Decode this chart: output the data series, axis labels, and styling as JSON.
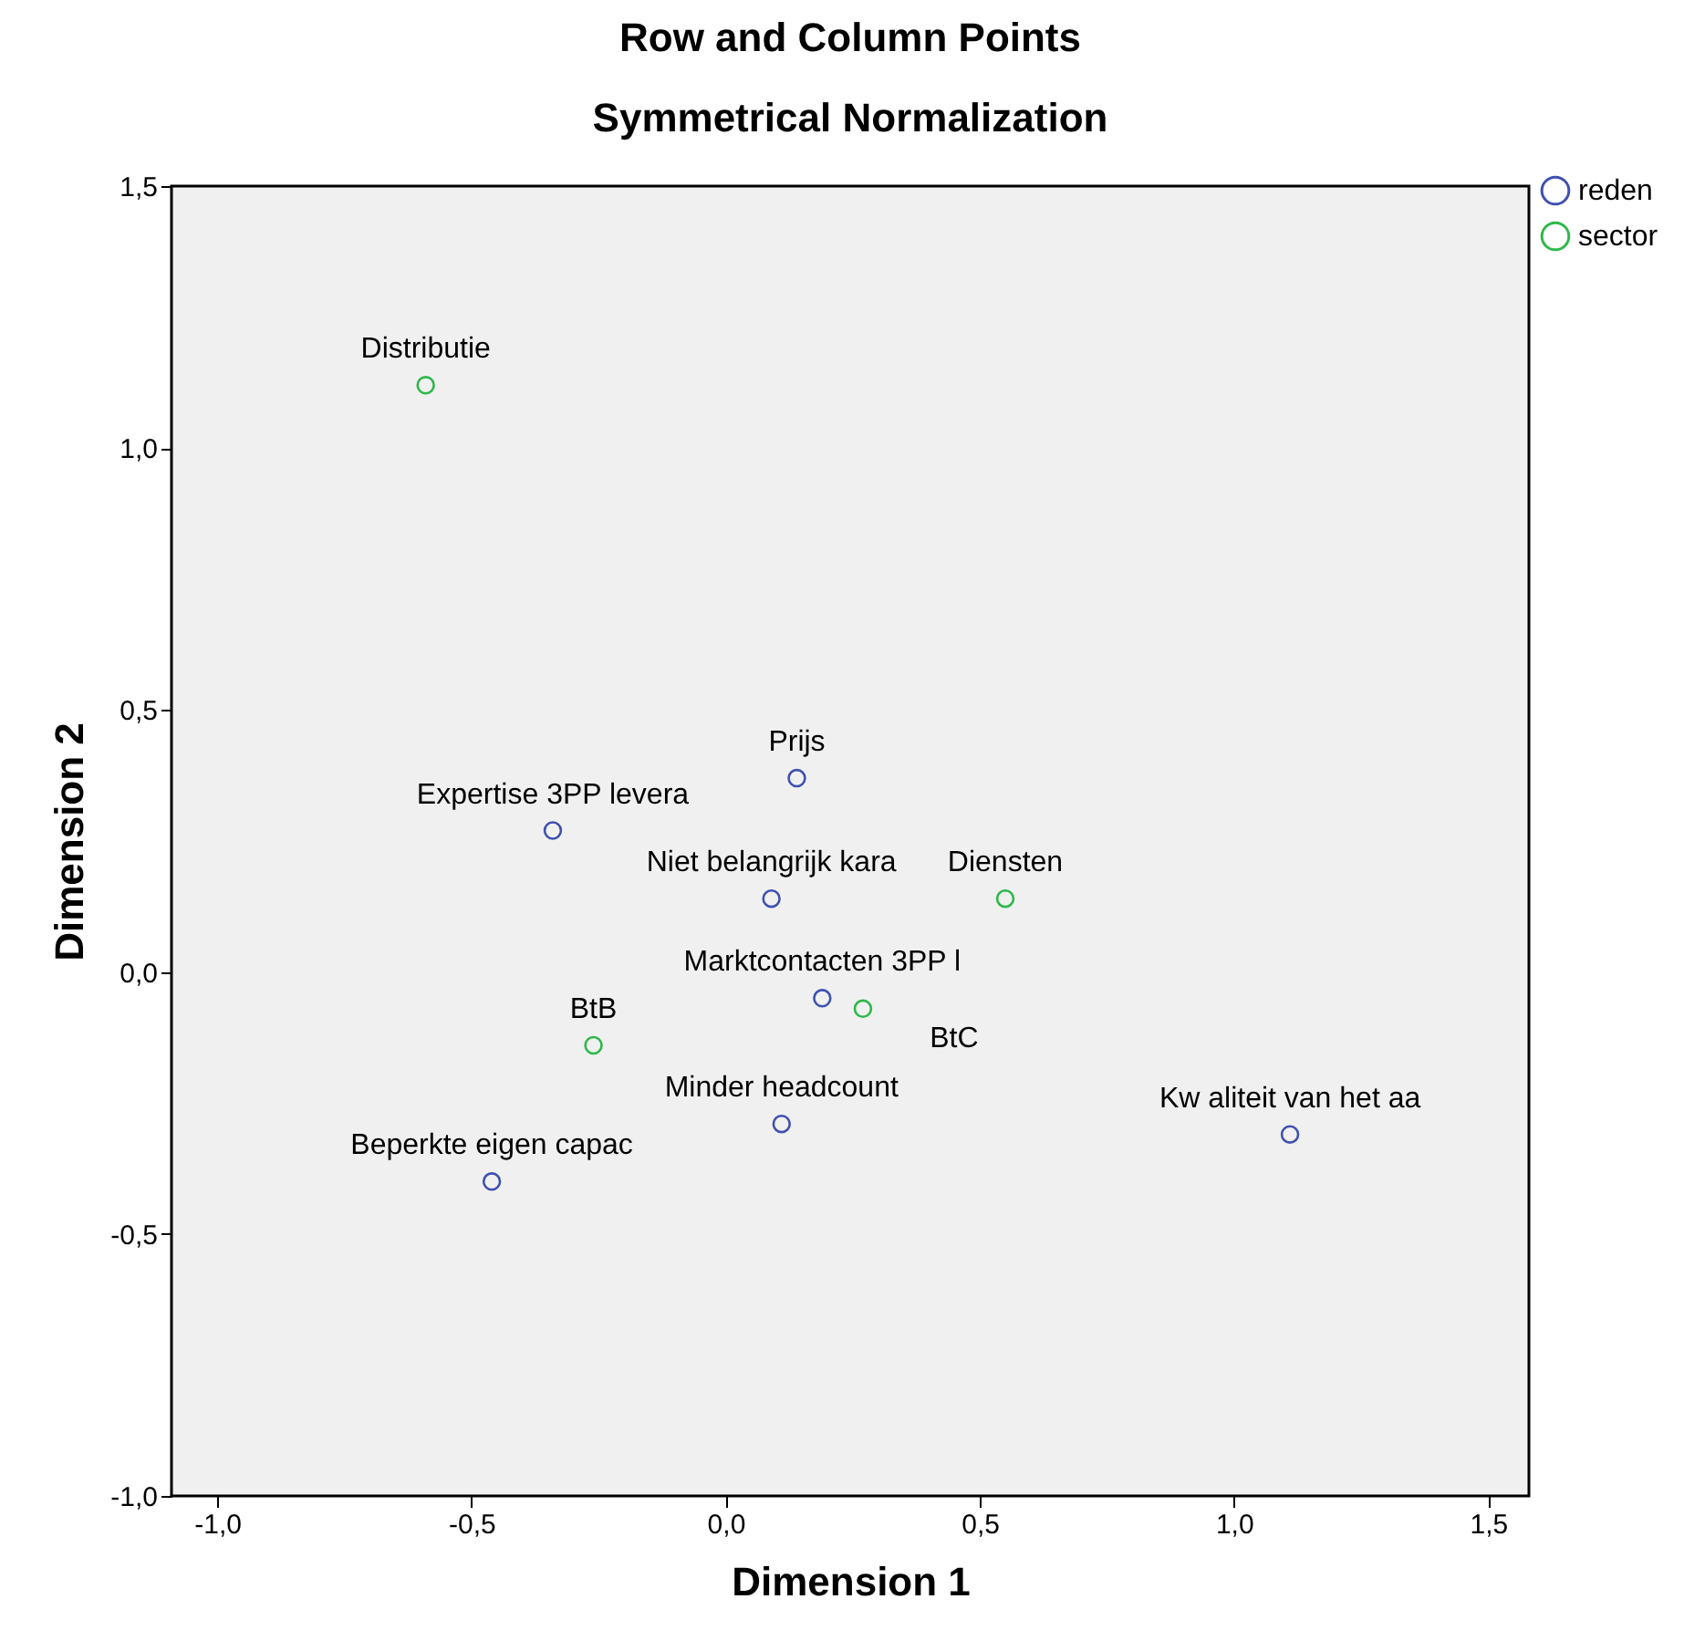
{
  "chart_data": {
    "type": "scatter",
    "title": "Row and Column Points",
    "subtitle": "Symmetrical Normalization",
    "xlabel": "Dimension 1",
    "ylabel": "Dimension 2",
    "xlim": [
      -1.09,
      1.58
    ],
    "ylim": [
      -1.0,
      1.5
    ],
    "xticks": [
      {
        "value": -1.0,
        "label": "-1,0"
      },
      {
        "value": -0.5,
        "label": "-0,5"
      },
      {
        "value": 0.0,
        "label": "0,0"
      },
      {
        "value": 0.5,
        "label": "0,5"
      },
      {
        "value": 1.0,
        "label": "1,0"
      },
      {
        "value": 1.5,
        "label": "1,5"
      }
    ],
    "yticks": [
      {
        "value": -1.0,
        "label": "-1,0"
      },
      {
        "value": -0.5,
        "label": "-0,5"
      },
      {
        "value": 0.0,
        "label": "0,0"
      },
      {
        "value": 0.5,
        "label": "0,5"
      },
      {
        "value": 1.0,
        "label": "1,0"
      },
      {
        "value": 1.5,
        "label": "1,5"
      }
    ],
    "grid": false,
    "legend": "top right",
    "marker": "circle",
    "series": [
      {
        "name": "reden",
        "color": "#3f51b0",
        "x": [
          0.14,
          -0.34,
          0.09,
          0.19,
          0.11,
          1.11,
          -0.46
        ],
        "values": [
          0.37,
          0.27,
          0.14,
          -0.05,
          -0.29,
          -0.31,
          -0.4
        ]
      },
      {
        "name": "sector",
        "color": "#2eb84a",
        "x": [
          -0.59,
          0.55,
          0.27,
          -0.26
        ],
        "values": [
          1.12,
          0.14,
          -0.07,
          -0.14
        ]
      }
    ],
    "annotations": [
      {
        "text": "Prijs",
        "x": 0.14,
        "y": 0.37
      },
      {
        "text": "Expertise 3PP levera",
        "x": -0.34,
        "y": 0.27
      },
      {
        "text": "Niet belangrijk kara",
        "x": 0.09,
        "y": 0.14
      },
      {
        "text": "Marktcontacten 3PP l",
        "x": 0.19,
        "y": -0.05
      },
      {
        "text": "Minder headcount",
        "x": 0.11,
        "y": -0.29
      },
      {
        "text": "Kw aliteit van het aa",
        "x": 1.11,
        "y": -0.31
      },
      {
        "text": "Beperkte eigen capac",
        "x": -0.46,
        "y": -0.4
      },
      {
        "text": "Distributie",
        "x": -0.59,
        "y": 1.12
      },
      {
        "text": "Diensten",
        "x": 0.55,
        "y": 0.14
      },
      {
        "text": "BtC",
        "x": 0.27,
        "y": -0.07
      },
      {
        "text": "BtB",
        "x": -0.26,
        "y": -0.14
      }
    ]
  }
}
